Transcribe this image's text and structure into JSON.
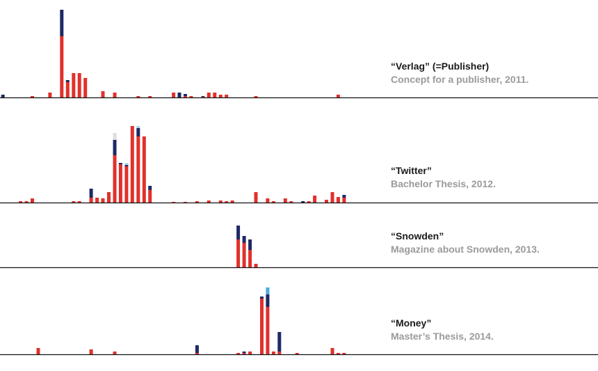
{
  "colors": {
    "red": "#e0312b",
    "navy": "#1e2a66",
    "light_blue": "#4aaee0",
    "pale_blue": "#a9d8f0",
    "light_gray": "#dedede",
    "axis": "#111111",
    "title": "#1a1a1a",
    "subtitle": "#9a9a9a"
  },
  "chart_data": [
    {
      "type": "bar",
      "stacked": true,
      "title": "“Verlag” (=Publisher)",
      "subtitle": "Concept for a publisher, 2011.",
      "x_range": [
        0,
        100
      ],
      "ylim": [
        0,
        124
      ],
      "bars": [
        {
          "x": 0.5,
          "red": 0,
          "navy": 4
        },
        {
          "x": 5.5,
          "red": 2
        },
        {
          "x": 8.5,
          "red": 7
        },
        {
          "x": 10.5,
          "red": 88,
          "navy": 38
        },
        {
          "x": 11.5,
          "red": 22,
          "navy": 3
        },
        {
          "x": 12.5,
          "red": 35
        },
        {
          "x": 13.5,
          "red": 35
        },
        {
          "x": 14.5,
          "red": 28
        },
        {
          "x": 17.5,
          "red": 9
        },
        {
          "x": 19.5,
          "red": 7
        },
        {
          "x": 23.5,
          "red": 2
        },
        {
          "x": 25.5,
          "red": 2
        },
        {
          "x": 29.5,
          "red": 7
        },
        {
          "x": 30.5,
          "red": 0,
          "navy": 7
        },
        {
          "x": 31.5,
          "red": 2,
          "navy": 3
        },
        {
          "x": 32.5,
          "red": 2
        },
        {
          "x": 34.5,
          "red": 1,
          "navy": 1
        },
        {
          "x": 35.5,
          "red": 7
        },
        {
          "x": 36.5,
          "red": 7
        },
        {
          "x": 37.5,
          "red": 4
        },
        {
          "x": 38.5,
          "red": 4
        },
        {
          "x": 43.5,
          "red": 2
        },
        {
          "x": 57.5,
          "red": 4
        }
      ]
    },
    {
      "type": "bar",
      "stacked": true,
      "title": "“Twitter”",
      "subtitle": "Bachelor Thesis, 2012.",
      "x_range": [
        0,
        100
      ],
      "ylim": [
        0,
        124
      ],
      "bars": [
        {
          "x": 3.5,
          "red": 2
        },
        {
          "x": 4.5,
          "red": 2
        },
        {
          "x": 5.5,
          "red": 6
        },
        {
          "x": 12.5,
          "red": 2
        },
        {
          "x": 13.5,
          "red": 2
        },
        {
          "x": 15.5,
          "red": 7,
          "navy": 13
        },
        {
          "x": 16.5,
          "red": 7
        },
        {
          "x": 17.5,
          "red": 6
        },
        {
          "x": 18.5,
          "red": 15
        },
        {
          "x": 19.5,
          "red": 68,
          "navy": 22,
          "light_gray": 10
        },
        {
          "x": 20.5,
          "red": 55,
          "navy": 2
        },
        {
          "x": 21.5,
          "red": 52,
          "navy": 2,
          "pale_blue": 3
        },
        {
          "x": 22.5,
          "red": 110
        },
        {
          "x": 23.5,
          "red": 95,
          "navy": 12,
          "pale_blue": 3
        },
        {
          "x": 24.5,
          "red": 95
        },
        {
          "x": 25.5,
          "red": 18,
          "navy": 6
        },
        {
          "x": 29.5,
          "red": 1
        },
        {
          "x": 31.5,
          "red": 1
        },
        {
          "x": 33.5,
          "red": 2
        },
        {
          "x": 35.5,
          "red": 3
        },
        {
          "x": 37.5,
          "red": 3
        },
        {
          "x": 38.5,
          "red": 2
        },
        {
          "x": 39.5,
          "red": 3
        },
        {
          "x": 43.5,
          "red": 15
        },
        {
          "x": 45.5,
          "red": 6
        },
        {
          "x": 46.5,
          "red": 2
        },
        {
          "x": 48.5,
          "red": 6
        },
        {
          "x": 49.5,
          "red": 2
        },
        {
          "x": 51.5,
          "red": 0,
          "navy": 2
        },
        {
          "x": 52.5,
          "red": 2
        },
        {
          "x": 53.5,
          "red": 10
        },
        {
          "x": 55.5,
          "red": 4
        },
        {
          "x": 56.5,
          "red": 15
        },
        {
          "x": 57.5,
          "red": 8
        },
        {
          "x": 58.5,
          "red": 7,
          "navy": 4
        }
      ]
    },
    {
      "type": "bar",
      "stacked": true,
      "title": "“Snowden”",
      "subtitle": "Magazine about Snowden, 2013.",
      "x_range": [
        0,
        100
      ],
      "ylim": [
        0,
        124
      ],
      "bars": [
        {
          "x": 40.5,
          "red": 40,
          "navy": 20
        },
        {
          "x": 41.5,
          "red": 35,
          "navy": 10
        },
        {
          "x": 42.5,
          "red": 25,
          "navy": 15
        },
        {
          "x": 43.5,
          "red": 5
        }
      ]
    },
    {
      "type": "bar",
      "stacked": true,
      "title": "“Money”",
      "subtitle": "Master’s Thesis, 2014.",
      "x_range": [
        0,
        100
      ],
      "ylim": [
        0,
        124
      ],
      "bars": [
        {
          "x": 6.5,
          "red": 9
        },
        {
          "x": 15.5,
          "red": 7
        },
        {
          "x": 19.5,
          "red": 4
        },
        {
          "x": 33.5,
          "red": 2,
          "navy": 11
        },
        {
          "x": 40.5,
          "red": 2
        },
        {
          "x": 41.5,
          "red": 2,
          "navy": 2
        },
        {
          "x": 42.5,
          "red": 4
        },
        {
          "x": 44.5,
          "red": 80,
          "navy": 3
        },
        {
          "x": 45.5,
          "red": 68,
          "light_blue": 10,
          "navy": 18
        },
        {
          "x": 46.5,
          "red": 4
        },
        {
          "x": 47.5,
          "red": 4,
          "navy": 28
        },
        {
          "x": 50.5,
          "red": 2
        },
        {
          "x": 56.5,
          "red": 9
        },
        {
          "x": 57.5,
          "red": 2
        },
        {
          "x": 58.5,
          "red": 2
        }
      ]
    }
  ]
}
